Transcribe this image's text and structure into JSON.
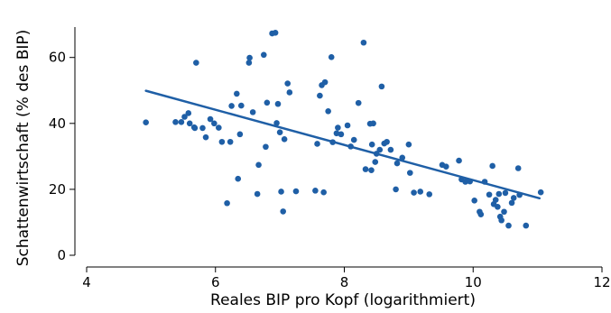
{
  "chart_data": {
    "type": "scatter",
    "xlabel": "Reales BIP pro Kopf (logarithmiert)",
    "ylabel": "Schattenwirtschaft (% des BIP)",
    "xlim": [
      4,
      12
    ],
    "ylim": [
      0,
      68
    ],
    "xticks": [
      "4",
      "6",
      "8",
      "10",
      "12"
    ],
    "yticks": [
      "0",
      "20",
      "40",
      "60"
    ],
    "colors": {
      "points": "#1f5fa6",
      "trend": "#1f5fa6",
      "axes": "#000000"
    },
    "grid": false,
    "points": [
      [
        4.92,
        40.3
      ],
      [
        5.38,
        40.4
      ],
      [
        5.47,
        40.4
      ],
      [
        5.52,
        42.0
      ],
      [
        5.58,
        43.1
      ],
      [
        5.6,
        40.0
      ],
      [
        5.67,
        38.8
      ],
      [
        5.68,
        38.6
      ],
      [
        5.7,
        58.4
      ],
      [
        5.8,
        38.6
      ],
      [
        5.85,
        35.8
      ],
      [
        5.92,
        41.3
      ],
      [
        5.98,
        40.0
      ],
      [
        6.05,
        38.7
      ],
      [
        6.1,
        34.4
      ],
      [
        6.18,
        15.8
      ],
      [
        6.23,
        34.4
      ],
      [
        6.25,
        45.3
      ],
      [
        6.33,
        49.0
      ],
      [
        6.35,
        23.2
      ],
      [
        6.38,
        36.7
      ],
      [
        6.4,
        45.4
      ],
      [
        6.52,
        58.4
      ],
      [
        6.53,
        59.9
      ],
      [
        6.58,
        43.4
      ],
      [
        6.65,
        18.6
      ],
      [
        6.67,
        27.4
      ],
      [
        6.75,
        60.8
      ],
      [
        6.78,
        32.9
      ],
      [
        6.8,
        46.3
      ],
      [
        6.88,
        67.3
      ],
      [
        6.93,
        67.5
      ],
      [
        6.95,
        40.1
      ],
      [
        6.97,
        45.9
      ],
      [
        7.0,
        37.3
      ],
      [
        7.02,
        19.3
      ],
      [
        7.05,
        13.3
      ],
      [
        7.07,
        35.2
      ],
      [
        7.12,
        52.1
      ],
      [
        7.15,
        49.4
      ],
      [
        7.25,
        19.4
      ],
      [
        7.55,
        19.6
      ],
      [
        7.58,
        33.8
      ],
      [
        7.62,
        48.4
      ],
      [
        7.65,
        51.6
      ],
      [
        7.68,
        19.1
      ],
      [
        7.7,
        52.5
      ],
      [
        7.75,
        43.7
      ],
      [
        7.8,
        60.1
      ],
      [
        7.82,
        34.3
      ],
      [
        7.88,
        37.0
      ],
      [
        7.9,
        38.7
      ],
      [
        7.95,
        36.7
      ],
      [
        8.05,
        39.4
      ],
      [
        8.1,
        33.0
      ],
      [
        8.15,
        35.0
      ],
      [
        8.22,
        46.2
      ],
      [
        8.3,
        64.5
      ],
      [
        8.33,
        26.1
      ],
      [
        8.4,
        39.9
      ],
      [
        8.42,
        25.8
      ],
      [
        8.43,
        33.6
      ],
      [
        8.45,
        40.0
      ],
      [
        8.48,
        28.3
      ],
      [
        8.5,
        30.8
      ],
      [
        8.55,
        32.0
      ],
      [
        8.58,
        51.2
      ],
      [
        8.62,
        33.9
      ],
      [
        8.66,
        34.4
      ],
      [
        8.72,
        32.0
      ],
      [
        8.8,
        20.0
      ],
      [
        8.82,
        27.9
      ],
      [
        8.9,
        29.6
      ],
      [
        9.0,
        33.6
      ],
      [
        9.02,
        25.0
      ],
      [
        9.08,
        19.0
      ],
      [
        9.18,
        19.3
      ],
      [
        9.32,
        18.5
      ],
      [
        9.52,
        27.4
      ],
      [
        9.58,
        26.9
      ],
      [
        9.78,
        28.7
      ],
      [
        9.82,
        23.0
      ],
      [
        9.88,
        22.3
      ],
      [
        9.95,
        22.4
      ],
      [
        10.02,
        16.6
      ],
      [
        10.1,
        13.2
      ],
      [
        10.12,
        12.4
      ],
      [
        10.18,
        22.3
      ],
      [
        10.25,
        18.4
      ],
      [
        10.3,
        27.1
      ],
      [
        10.32,
        15.5
      ],
      [
        10.35,
        16.8
      ],
      [
        10.38,
        14.7
      ],
      [
        10.4,
        18.6
      ],
      [
        10.42,
        11.7
      ],
      [
        10.44,
        10.6
      ],
      [
        10.48,
        13.2
      ],
      [
        10.5,
        18.9
      ],
      [
        10.55,
        9.0
      ],
      [
        10.6,
        15.9
      ],
      [
        10.63,
        17.4
      ],
      [
        10.7,
        26.4
      ],
      [
        10.72,
        18.3
      ],
      [
        10.82,
        9.0
      ],
      [
        11.05,
        19.1
      ]
    ],
    "trend_line": {
      "x": [
        4.92,
        11.03
      ],
      "y": [
        49.9,
        17.3
      ]
    }
  }
}
